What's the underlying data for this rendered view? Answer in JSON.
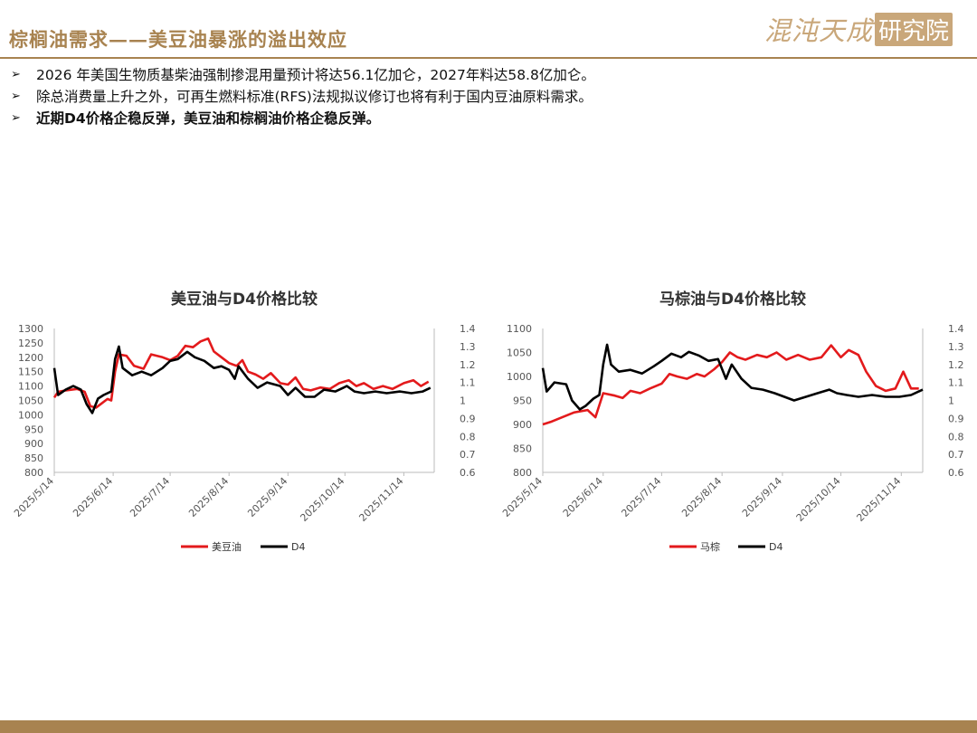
{
  "header": {
    "title": "棕榈油需求——美豆油暴涨的溢出效应",
    "logo_text": "混沌天成",
    "logo_box": "研究院"
  },
  "bullets": [
    {
      "text": "2026 年美国生物质基柴油强制掺混用量预计将达56.1亿加仑，2027年料达58.8亿加仑。",
      "bold": false
    },
    {
      "text": "除总消费量上升之外，可再生燃料标准(RFS)法规拟议修订也将有利于国内豆油原料需求。",
      "bold": false
    },
    {
      "text": "近期D4价格企稳反弹，美豆油和棕榈油价格企稳反弹。",
      "bold": true
    }
  ],
  "bullet_marker": "➢",
  "chart_data": [
    {
      "type": "line",
      "title": "美豆油与D4价格比较",
      "x_ticks": [
        "2025/5/14",
        "2025/6/14",
        "2025/7/14",
        "2025/8/14",
        "2025/9/14",
        "2025/10/14",
        "2025/11/14"
      ],
      "x_range": [
        "2025/5/14",
        "2025/11/30"
      ],
      "ylim_left": [
        800,
        1300
      ],
      "y_ticks_left": [
        "1300",
        "1250",
        "1200",
        "1150",
        "1100",
        "1050",
        "1000",
        "950",
        "900",
        "850",
        "800"
      ],
      "ylim_right": [
        0.6,
        1.4
      ],
      "y_ticks_right": [
        "1.4",
        "1.3",
        "1.2",
        "1.1",
        "1",
        "0.9",
        "0.8",
        "0.7",
        "0.6"
      ],
      "grid": false,
      "legend_position": "bottom",
      "series": [
        {
          "name": "美豆油",
          "axis": "left",
          "color": "#e31a1c",
          "points": [
            [
              "2025/5/14",
              1060
            ],
            [
              "2025/5/16",
              1080
            ],
            [
              "2025/5/20",
              1085
            ],
            [
              "2025/5/26",
              1090
            ],
            [
              "2025/5/30",
              1080
            ],
            [
              "2025/6/2",
              1030
            ],
            [
              "2025/6/5",
              1025
            ],
            [
              "2025/6/8",
              1040
            ],
            [
              "2025/6/11",
              1055
            ],
            [
              "2025/6/13",
              1050
            ],
            [
              "2025/6/15",
              1150
            ],
            [
              "2025/6/17",
              1210
            ],
            [
              "2025/6/21",
              1205
            ],
            [
              "2025/6/25",
              1170
            ],
            [
              "2025/6/30",
              1160
            ],
            [
              "2025/7/4",
              1210
            ],
            [
              "2025/7/10",
              1200
            ],
            [
              "2025/7/14",
              1190
            ],
            [
              "2025/7/18",
              1205
            ],
            [
              "2025/7/22",
              1240
            ],
            [
              "2025/7/26",
              1235
            ],
            [
              "2025/7/30",
              1255
            ],
            [
              "2025/8/3",
              1265
            ],
            [
              "2025/8/6",
              1220
            ],
            [
              "2025/8/10",
              1200
            ],
            [
              "2025/8/14",
              1180
            ],
            [
              "2025/8/18",
              1170
            ],
            [
              "2025/8/21",
              1190
            ],
            [
              "2025/8/24",
              1150
            ],
            [
              "2025/8/28",
              1140
            ],
            [
              "2025/9/1",
              1125
            ],
            [
              "2025/9/5",
              1145
            ],
            [
              "2025/9/10",
              1110
            ],
            [
              "2025/9/14",
              1105
            ],
            [
              "2025/9/18",
              1130
            ],
            [
              "2025/9/22",
              1090
            ],
            [
              "2025/9/26",
              1085
            ],
            [
              "2025/10/1",
              1095
            ],
            [
              "2025/10/6",
              1090
            ],
            [
              "2025/10/11",
              1110
            ],
            [
              "2025/10/16",
              1120
            ],
            [
              "2025/10/20",
              1100
            ],
            [
              "2025/10/24",
              1110
            ],
            [
              "2025/10/29",
              1090
            ],
            [
              "2025/11/3",
              1100
            ],
            [
              "2025/11/8",
              1090
            ],
            [
              "2025/11/14",
              1110
            ],
            [
              "2025/11/19",
              1120
            ],
            [
              "2025/11/23",
              1100
            ],
            [
              "2025/11/27",
              1115
            ]
          ]
        },
        {
          "name": "D4",
          "axis": "right",
          "color": "#000000",
          "points": [
            [
              "2025/5/14",
              1.18
            ],
            [
              "2025/5/16",
              1.03
            ],
            [
              "2025/5/20",
              1.06
            ],
            [
              "2025/5/24",
              1.08
            ],
            [
              "2025/5/28",
              1.06
            ],
            [
              "2025/5/31",
              0.98
            ],
            [
              "2025/6/3",
              0.93
            ],
            [
              "2025/6/6",
              1.01
            ],
            [
              "2025/6/9",
              1.03
            ],
            [
              "2025/6/13",
              1.05
            ],
            [
              "2025/6/15",
              1.23
            ],
            [
              "2025/6/17",
              1.3
            ],
            [
              "2025/6/19",
              1.18
            ],
            [
              "2025/6/24",
              1.14
            ],
            [
              "2025/6/29",
              1.16
            ],
            [
              "2025/7/4",
              1.14
            ],
            [
              "2025/7/10",
              1.18
            ],
            [
              "2025/7/14",
              1.22
            ],
            [
              "2025/7/18",
              1.23
            ],
            [
              "2025/7/23",
              1.27
            ],
            [
              "2025/7/27",
              1.24
            ],
            [
              "2025/8/1",
              1.22
            ],
            [
              "2025/8/6",
              1.18
            ],
            [
              "2025/8/10",
              1.19
            ],
            [
              "2025/8/14",
              1.17
            ],
            [
              "2025/8/17",
              1.12
            ],
            [
              "2025/8/19",
              1.19
            ],
            [
              "2025/8/24",
              1.12
            ],
            [
              "2025/8/29",
              1.07
            ],
            [
              "2025/9/3",
              1.1
            ],
            [
              "2025/9/10",
              1.08
            ],
            [
              "2025/9/14",
              1.03
            ],
            [
              "2025/9/18",
              1.07
            ],
            [
              "2025/9/23",
              1.02
            ],
            [
              "2025/9/28",
              1.02
            ],
            [
              "2025/10/3",
              1.06
            ],
            [
              "2025/10/9",
              1.05
            ],
            [
              "2025/10/15",
              1.08
            ],
            [
              "2025/10/19",
              1.05
            ],
            [
              "2025/10/24",
              1.04
            ],
            [
              "2025/10/30",
              1.05
            ],
            [
              "2025/11/5",
              1.04
            ],
            [
              "2025/11/12",
              1.05
            ],
            [
              "2025/11/18",
              1.04
            ],
            [
              "2025/11/24",
              1.05
            ],
            [
              "2025/11/28",
              1.07
            ]
          ]
        }
      ]
    },
    {
      "type": "line",
      "title": "马棕油与D4价格比较",
      "x_ticks": [
        "2025/5/14",
        "2025/6/14",
        "2025/7/14",
        "2025/8/14",
        "2025/9/14",
        "2025/10/14",
        "2025/11/14"
      ],
      "x_range": [
        "2025/5/14",
        "2025/11/25"
      ],
      "ylim_left": [
        800,
        1100
      ],
      "y_ticks_left": [
        "1100",
        "1050",
        "1000",
        "950",
        "900",
        "850",
        "800"
      ],
      "ylim_right": [
        0.6,
        1.4
      ],
      "y_ticks_right": [
        "1.4",
        "1.3",
        "1.2",
        "1.1",
        "1",
        "0.9",
        "0.8",
        "0.7",
        "0.6"
      ],
      "grid": false,
      "legend_position": "bottom",
      "series": [
        {
          "name": "马棕",
          "axis": "left",
          "color": "#e31a1c",
          "points": [
            [
              "2025/5/14",
              900
            ],
            [
              "2025/5/18",
              905
            ],
            [
              "2025/5/24",
              915
            ],
            [
              "2025/5/30",
              925
            ],
            [
              "2025/6/6",
              930
            ],
            [
              "2025/6/10",
              915
            ],
            [
              "2025/6/14",
              965
            ],
            [
              "2025/6/20",
              960
            ],
            [
              "2025/6/24",
              955
            ],
            [
              "2025/6/28",
              970
            ],
            [
              "2025/7/3",
              965
            ],
            [
              "2025/7/8",
              975
            ],
            [
              "2025/7/14",
              985
            ],
            [
              "2025/7/18",
              1005
            ],
            [
              "2025/7/22",
              1000
            ],
            [
              "2025/7/27",
              995
            ],
            [
              "2025/8/1",
              1005
            ],
            [
              "2025/8/5",
              1000
            ],
            [
              "2025/8/10",
              1015
            ],
            [
              "2025/8/14",
              1030
            ],
            [
              "2025/8/18",
              1050
            ],
            [
              "2025/8/22",
              1040
            ],
            [
              "2025/8/26",
              1035
            ],
            [
              "2025/9/1",
              1045
            ],
            [
              "2025/9/6",
              1040
            ],
            [
              "2025/9/11",
              1050
            ],
            [
              "2025/9/16",
              1035
            ],
            [
              "2025/9/22",
              1045
            ],
            [
              "2025/9/28",
              1035
            ],
            [
              "2025/10/4",
              1040
            ],
            [
              "2025/10/9",
              1065
            ],
            [
              "2025/10/14",
              1040
            ],
            [
              "2025/10/18",
              1055
            ],
            [
              "2025/10/23",
              1045
            ],
            [
              "2025/10/27",
              1010
            ],
            [
              "2025/11/1",
              980
            ],
            [
              "2025/11/6",
              970
            ],
            [
              "2025/11/11",
              975
            ],
            [
              "2025/11/15",
              1010
            ],
            [
              "2025/11/19",
              975
            ],
            [
              "2025/11/23",
              975
            ]
          ]
        },
        {
          "name": "D4",
          "axis": "right",
          "color": "#000000",
          "points": [
            [
              "2025/5/14",
              1.18
            ],
            [
              "2025/5/16",
              1.05
            ],
            [
              "2025/5/20",
              1.1
            ],
            [
              "2025/5/26",
              1.09
            ],
            [
              "2025/5/29",
              1.0
            ],
            [
              "2025/6/2",
              0.95
            ],
            [
              "2025/6/5",
              0.97
            ],
            [
              "2025/6/9",
              1.01
            ],
            [
              "2025/6/12",
              1.03
            ],
            [
              "2025/6/14",
              1.2
            ],
            [
              "2025/6/16",
              1.31
            ],
            [
              "2025/6/18",
              1.2
            ],
            [
              "2025/6/22",
              1.16
            ],
            [
              "2025/6/28",
              1.17
            ],
            [
              "2025/7/4",
              1.15
            ],
            [
              "2025/7/10",
              1.19
            ],
            [
              "2025/7/14",
              1.22
            ],
            [
              "2025/7/19",
              1.26
            ],
            [
              "2025/7/24",
              1.24
            ],
            [
              "2025/7/28",
              1.27
            ],
            [
              "2025/8/2",
              1.25
            ],
            [
              "2025/8/7",
              1.22
            ],
            [
              "2025/8/12",
              1.23
            ],
            [
              "2025/8/16",
              1.12
            ],
            [
              "2025/8/19",
              1.2
            ],
            [
              "2025/8/24",
              1.12
            ],
            [
              "2025/8/29",
              1.07
            ],
            [
              "2025/9/4",
              1.06
            ],
            [
              "2025/9/10",
              1.04
            ],
            [
              "2025/9/15",
              1.02
            ],
            [
              "2025/9/20",
              1.0
            ],
            [
              "2025/9/26",
              1.02
            ],
            [
              "2025/10/2",
              1.04
            ],
            [
              "2025/10/8",
              1.06
            ],
            [
              "2025/10/12",
              1.04
            ],
            [
              "2025/10/17",
              1.03
            ],
            [
              "2025/10/23",
              1.02
            ],
            [
              "2025/10/30",
              1.03
            ],
            [
              "2025/11/6",
              1.02
            ],
            [
              "2025/11/13",
              1.02
            ],
            [
              "2025/11/19",
              1.03
            ],
            [
              "2025/11/25",
              1.06
            ]
          ]
        }
      ]
    }
  ]
}
